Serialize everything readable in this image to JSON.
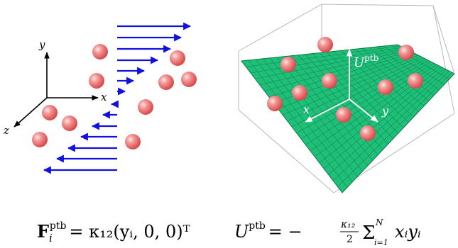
{
  "left_panel": {
    "axis_labels": {
      "x": "x",
      "y": "y",
      "z": "z"
    },
    "formula": {
      "bold_symbol": "F",
      "subscript": "i",
      "superscript": "ptb",
      "rhs": "= κ₁₂(yᵢ, 0, 0)ᵀ"
    }
  },
  "right_panel": {
    "axis_labels": {
      "x": "x",
      "y": "y",
      "u": "U",
      "u_sup": "ptb"
    },
    "formula": {
      "lhs": "U",
      "lhs_sup": "ptb",
      "rhs_prefix": "= −",
      "frac_num": "κ₁₂",
      "frac_den": "2",
      "sum_symbol": "Σ",
      "sum_upper": "N",
      "sum_lower": "i=1",
      "sum_body": "xᵢyᵢ"
    }
  },
  "colors": {
    "arrow": "#1010e0",
    "sphere": "#f07a7a",
    "surface": "#1fbf7a",
    "surface_grid": "#0d7a46",
    "box": "#b8b8b8"
  }
}
